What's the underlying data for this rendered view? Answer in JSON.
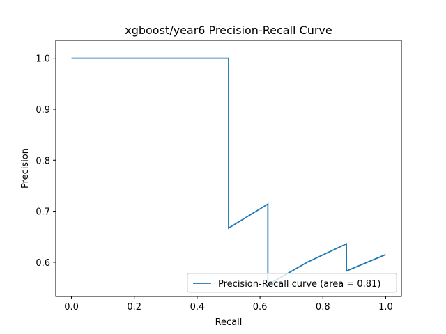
{
  "chart_data": {
    "type": "line",
    "title": "xgboost/year6 Precision-Recall Curve",
    "xlabel": "Recall",
    "ylabel": "Precision",
    "xlim": [
      -0.05,
      1.05
    ],
    "ylim": [
      0.533,
      1.035
    ],
    "xticks": [
      0.0,
      0.2,
      0.4,
      0.6,
      0.8,
      1.0
    ],
    "xtick_labels": [
      "0.0",
      "0.2",
      "0.4",
      "0.6",
      "0.8",
      "1.0"
    ],
    "yticks": [
      0.6,
      0.7,
      0.8,
      0.9,
      1.0
    ],
    "ytick_labels": [
      "0.6",
      "0.7",
      "0.8",
      "0.9",
      "1.0"
    ],
    "grid": false,
    "legend_position": "lower-right",
    "series": [
      {
        "name": "Precision-Recall curve (area = 0.81)",
        "color": "#1f77b4",
        "x": [
          0.0,
          0.5,
          0.5,
          0.625,
          0.625,
          0.625,
          0.75,
          0.875,
          0.875,
          1.0
        ],
        "y": [
          1.0,
          1.0,
          0.667,
          0.714,
          0.556,
          0.556,
          0.6,
          0.636,
          0.583,
          0.615
        ]
      }
    ]
  }
}
